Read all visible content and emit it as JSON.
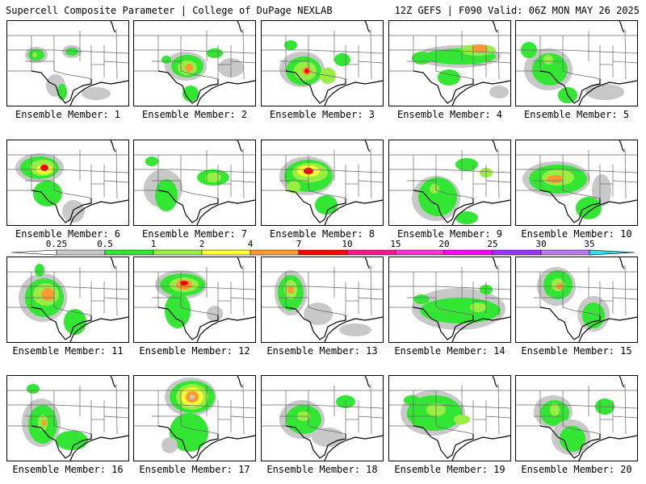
{
  "header": {
    "left": "Supercell Composite Parameter | College of DuPage NEXLAB",
    "right": "12Z GEFS | F090 Valid: 06Z MON MAY 26 2025"
  },
  "colorbar": {
    "levels": [
      "0.25",
      "0.5",
      "1",
      "2",
      "4",
      "7",
      "10",
      "15",
      "20",
      "25",
      "30",
      "35"
    ],
    "colors": [
      "#c8c8c8",
      "#33e633",
      "#99ee44",
      "#ffff33",
      "#ff9933",
      "#ff0000",
      "#ff1493",
      "#ff33cc",
      "#ff00ff",
      "#9933ff",
      "#bb77ee",
      "#33ddee"
    ]
  },
  "panels": [
    {
      "label": "Ensemble Member: 1"
    },
    {
      "label": "Ensemble Member: 2"
    },
    {
      "label": "Ensemble Member: 3"
    },
    {
      "label": "Ensemble Member: 4"
    },
    {
      "label": "Ensemble Member: 5"
    },
    {
      "label": "Ensemble Member: 6"
    },
    {
      "label": "Ensemble Member: 7"
    },
    {
      "label": "Ensemble Member: 8"
    },
    {
      "label": "Ensemble Member: 9"
    },
    {
      "label": "Ensemble Member: 10"
    },
    {
      "label": "Ensemble Member: 11"
    },
    {
      "label": "Ensemble Member: 12"
    },
    {
      "label": "Ensemble Member: 13"
    },
    {
      "label": "Ensemble Member: 14"
    },
    {
      "label": "Ensemble Member: 15"
    },
    {
      "label": "Ensemble Member: 16"
    },
    {
      "label": "Ensemble Member: 17"
    },
    {
      "label": "Ensemble Member: 18"
    },
    {
      "label": "Ensemble Member: 19"
    },
    {
      "label": "Ensemble Member: 20"
    }
  ]
}
